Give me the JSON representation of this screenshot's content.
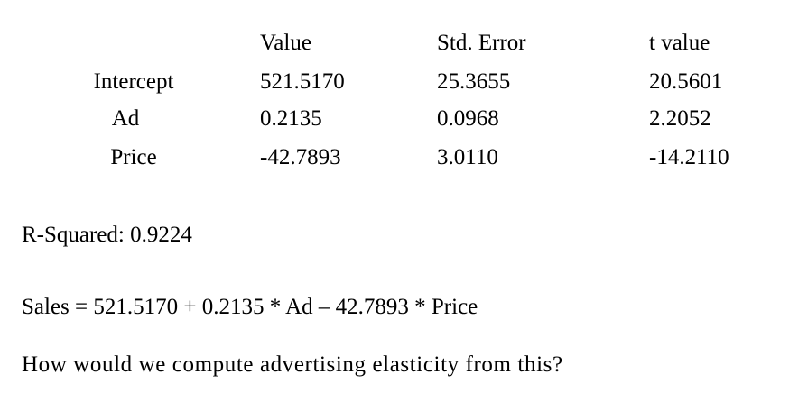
{
  "table": {
    "columns": [
      "Value",
      "Std. Error",
      "t value"
    ],
    "rows": [
      {
        "label": "Intercept",
        "value": "521.5170",
        "std_error": "25.3655",
        "t_value": "20.5601"
      },
      {
        "label": "Ad",
        "value": "0.2135",
        "std_error": "0.0968",
        "t_value": "2.2052"
      },
      {
        "label": "Price",
        "value": "-42.7893",
        "std_error": "3.0110",
        "t_value": "-14.2110"
      }
    ]
  },
  "r_squared": "R-Squared: 0.9224",
  "equation": "Sales = 521.5170 + 0.2135 * Ad – 42.7893 * Price",
  "question": "How would we compute advertising elasticity from this?"
}
